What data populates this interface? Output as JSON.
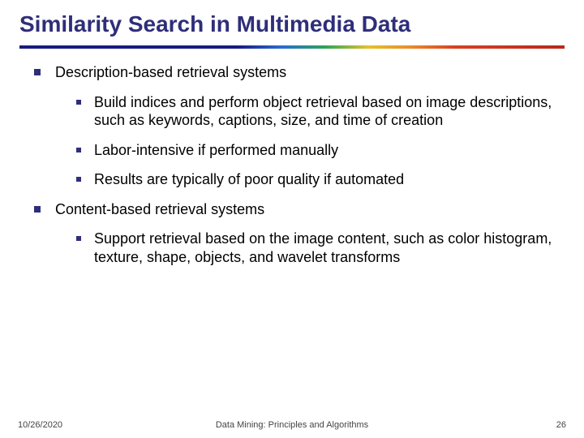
{
  "title": "Similarity Search in Multimedia Data",
  "title_color": "#2f2e7a",
  "title_fontsize": 28,
  "body_fontsize": 18,
  "bullet_color": "#2f2e7a",
  "bar_gradient": [
    "#1a1a80",
    "#2a6ad4",
    "#2aa35a",
    "#e4c22a",
    "#e88a2a",
    "#d64024",
    "#b8281c"
  ],
  "background_color": "#ffffff",
  "sections": [
    {
      "text": "Description-based retrieval systems",
      "children": [
        {
          "text": "Build indices and perform object retrieval based on image descriptions, such as keywords, captions, size, and time of creation"
        },
        {
          "text": "Labor-intensive if performed manually"
        },
        {
          "text": "Results are typically of poor quality if automated"
        }
      ]
    },
    {
      "text": "Content-based retrieval systems",
      "children": [
        {
          "text": "Support retrieval based on the image content, such as color histogram, texture, shape, objects, and wavelet transforms"
        }
      ]
    }
  ],
  "footer": {
    "date": "10/26/2020",
    "center": "Data Mining: Principles and Algorithms",
    "page": "26"
  }
}
